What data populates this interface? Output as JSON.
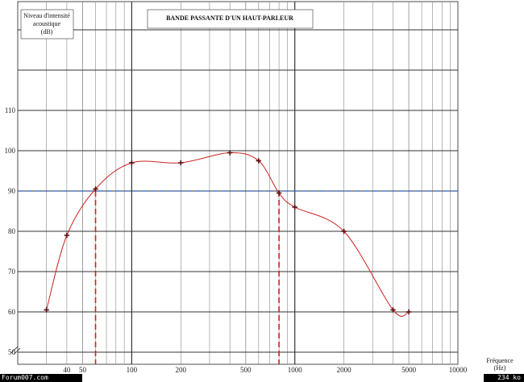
{
  "chart_data": {
    "type": "line",
    "title": "BANDE PASSANTE D'UN HAUT-PARLEUR",
    "ylabel_lines": [
      "Niveau d'intensité",
      "acoustique",
      "(dB)"
    ],
    "xlabel_lines": [
      "Fréquence",
      "(Hz)"
    ],
    "x_scale": "log",
    "xlim": [
      20,
      10000
    ],
    "ylim": [
      47,
      137
    ],
    "x_tick_labels": [
      "40",
      "50",
      "100",
      "200",
      "500",
      "1000",
      "2000",
      "5000",
      "10000"
    ],
    "x_tick_values": [
      40,
      50,
      100,
      200,
      500,
      1000,
      2000,
      5000,
      10000
    ],
    "y_tick_labels": [
      "50",
      "60",
      "70",
      "80",
      "90",
      "100",
      "110"
    ],
    "y_tick_values": [
      50,
      60,
      70,
      80,
      90,
      100,
      110
    ],
    "series": [
      {
        "x": [
          30,
          40,
          60,
          100,
          200,
          400,
          600,
          800,
          1000,
          2000,
          4000,
          5000
        ],
        "y": [
          60.5,
          79,
          90.5,
          97,
          97,
          99.5,
          97.5,
          89.5,
          86,
          80,
          60.5,
          60
        ],
        "color": "#cc2222"
      }
    ],
    "reference_line": {
      "y": 90,
      "color": "#2a5ab8"
    },
    "cutoff_lines": {
      "x": [
        60,
        800
      ],
      "color": "#cc2222"
    },
    "grid": true
  },
  "footer": {
    "left": "Forum007.com",
    "right": "234 ko"
  }
}
